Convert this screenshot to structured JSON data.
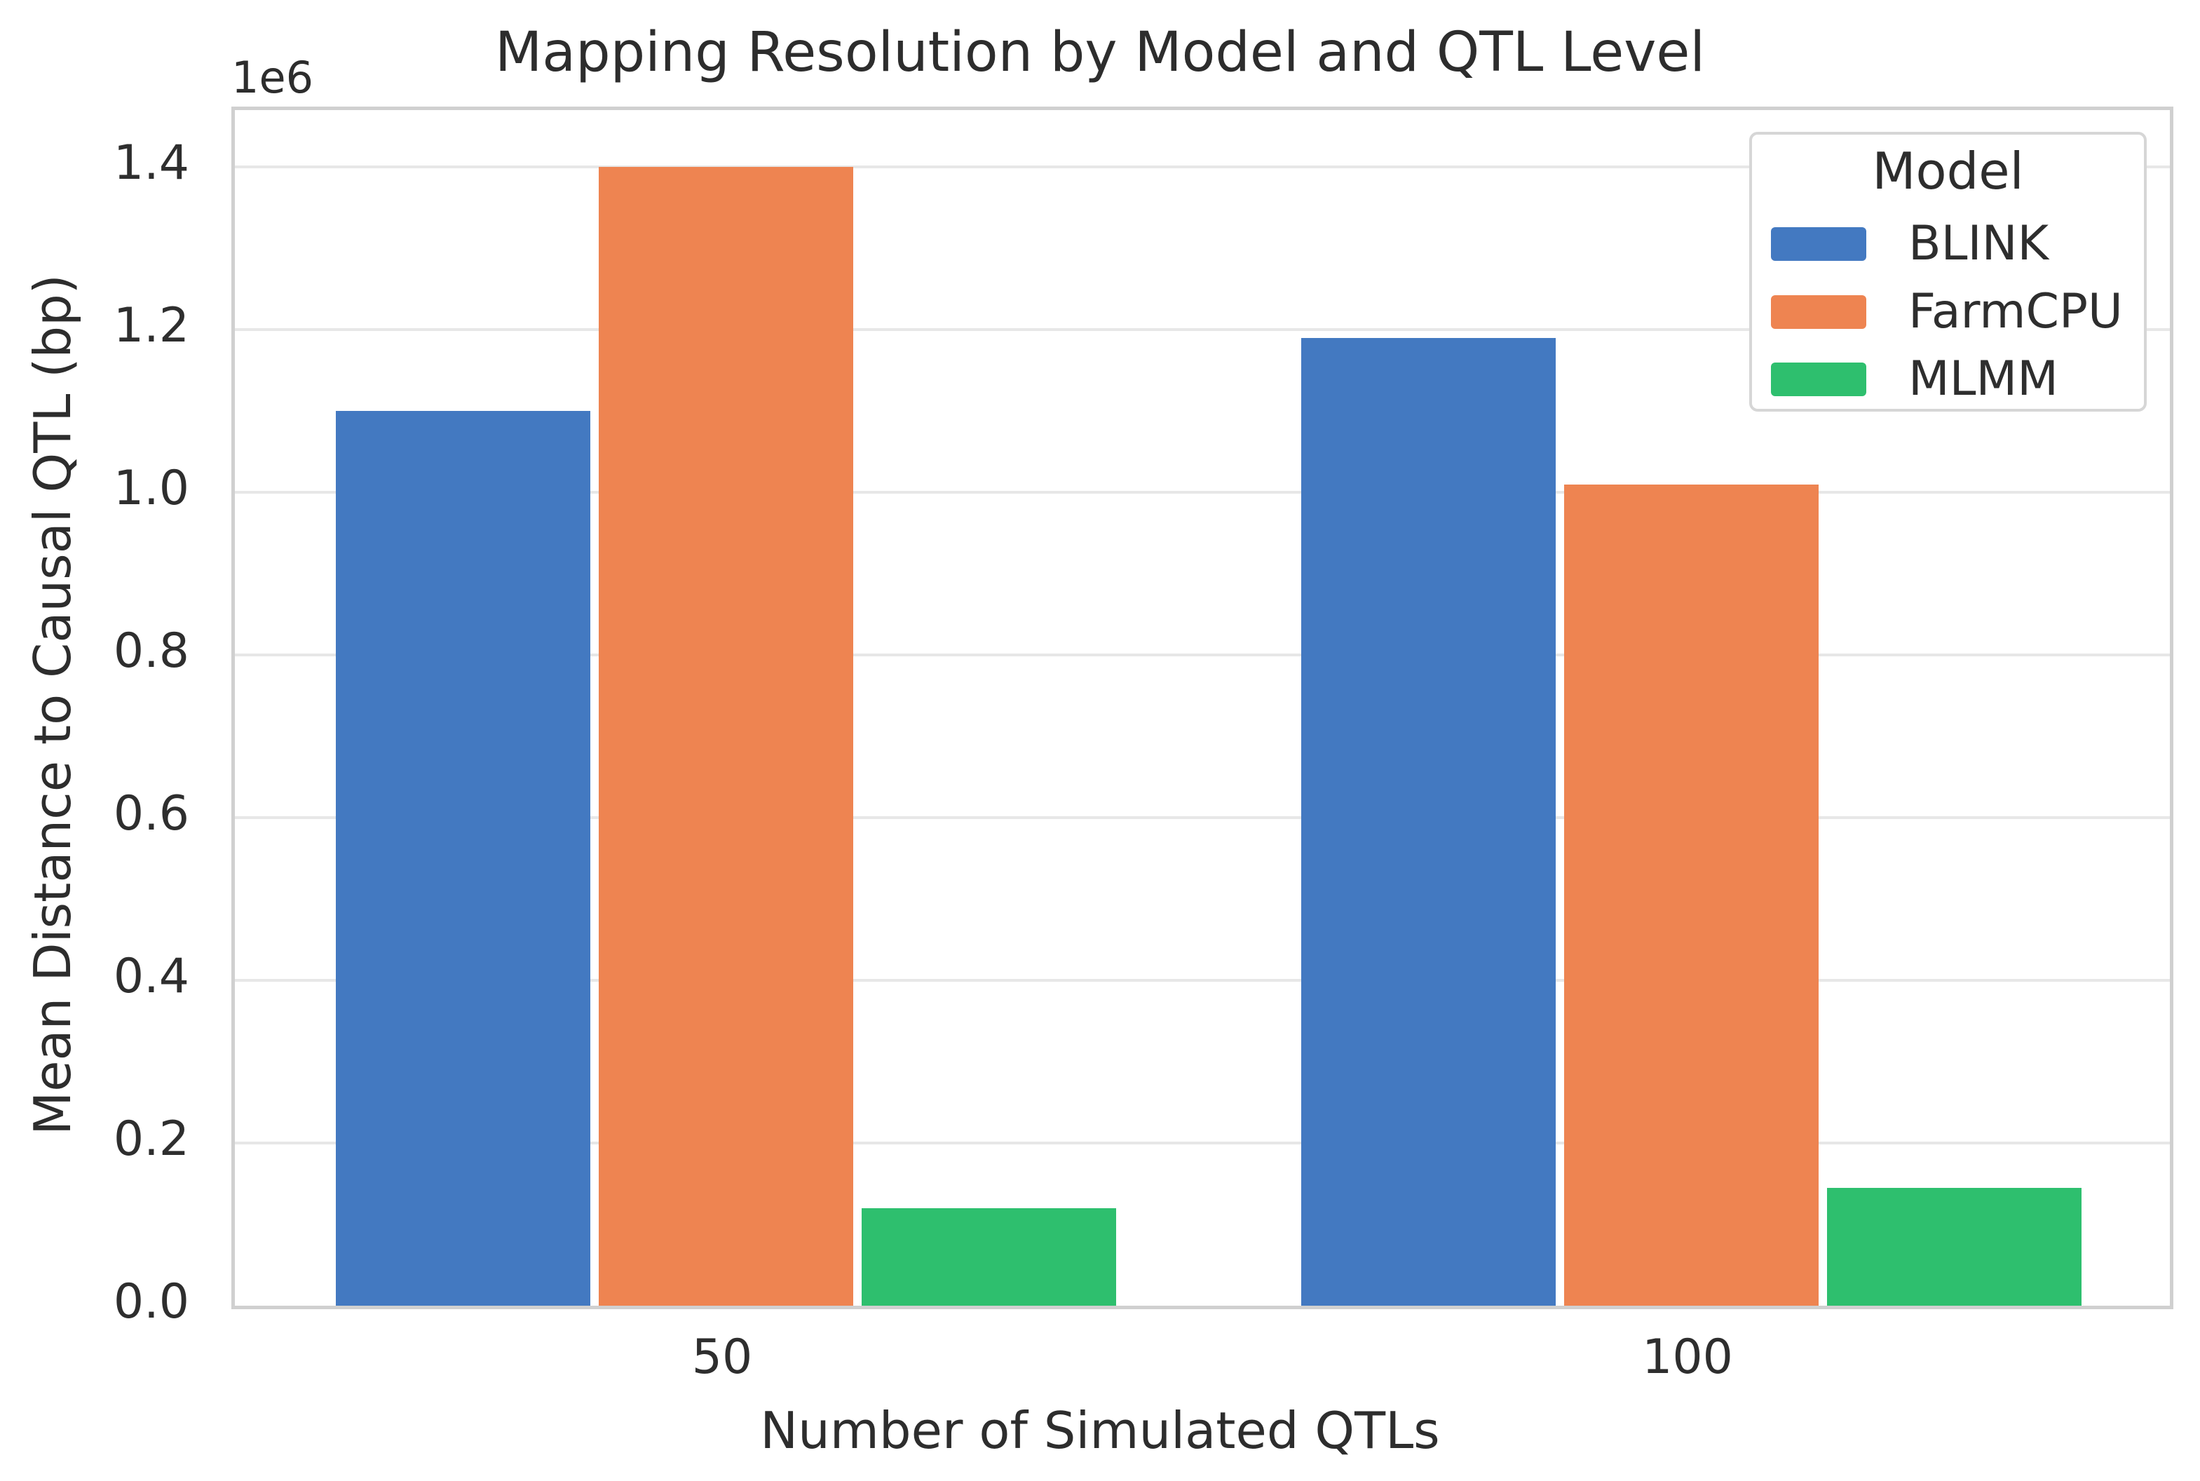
{
  "chart_data": {
    "type": "bar",
    "title": "Mapping Resolution by Model and QTL Level",
    "xlabel": "Number of Simulated QTLs",
    "ylabel": "Mean Distance to Causal QTL (bp)",
    "y_offset_text": "1e6",
    "categories": [
      "50",
      "100"
    ],
    "series": [
      {
        "name": "BLINK",
        "color": "#4379c1",
        "values": [
          1100000,
          1190000
        ]
      },
      {
        "name": "FarmCPU",
        "color": "#ee8451",
        "values": [
          1400000,
          1010000
        ]
      },
      {
        "name": "MLMM",
        "color": "#2ebf6e",
        "values": [
          120000,
          145000
        ]
      }
    ],
    "ylim": [
      0,
      1470000
    ],
    "yticks": {
      "values": [
        0,
        200000,
        400000,
        600000,
        800000,
        1000000,
        1200000,
        1400000
      ],
      "labels": [
        "0.0",
        "0.2",
        "0.4",
        "0.6",
        "0.8",
        "1.0",
        "1.2",
        "1.4"
      ]
    },
    "legend": {
      "title": "Model",
      "position": "upper right"
    },
    "grid": "horizontal",
    "colors": {
      "background": "#ffffff",
      "gridline": "#e7e7e7",
      "spine": "#d0d0d0",
      "text": "#2d2d2d",
      "legend_border": "#d6d6d6"
    }
  }
}
